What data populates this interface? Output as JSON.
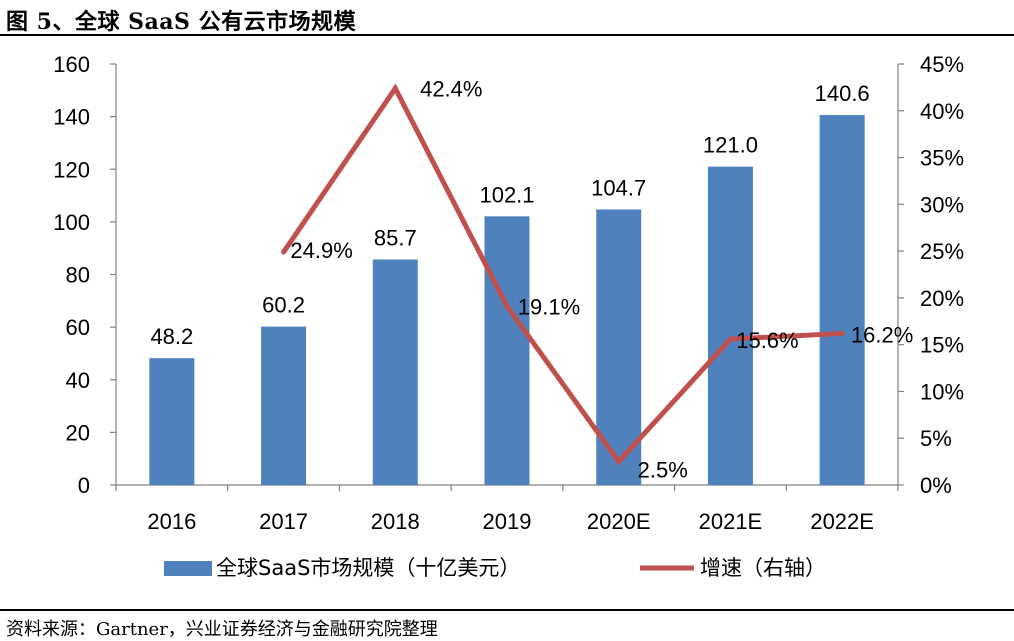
{
  "title": "图 5、全球 SaaS 公有云市场规模",
  "source": "资料来源：Gartner，兴业证券经济与金融研究院整理",
  "colors": {
    "bar": "#4F81BD",
    "line": "#C0504D",
    "axis": "#808080"
  },
  "chart_data": {
    "type": "bar",
    "categories": [
      "2016",
      "2017",
      "2018",
      "2019",
      "2020E",
      "2021E",
      "2022E"
    ],
    "series": [
      {
        "name": "全球SaaS市场规模（十亿美元）",
        "type": "bar",
        "axis": "left",
        "values": [
          48.2,
          60.2,
          85.7,
          102.1,
          104.7,
          121.0,
          140.6
        ],
        "labels": [
          "48.2",
          "60.2",
          "85.7",
          "102.1",
          "104.7",
          "121.0",
          "140.6"
        ]
      },
      {
        "name": "增速（右轴）",
        "type": "line",
        "axis": "right",
        "values": [
          null,
          24.9,
          42.4,
          19.1,
          2.5,
          15.6,
          16.2
        ],
        "labels": [
          "",
          "24.9%",
          "42.4%",
          "19.1%",
          "2.5%",
          "15.6%",
          "16.2%"
        ]
      }
    ],
    "y_left": {
      "ylim": [
        0,
        160
      ],
      "ticks": [
        "0",
        "20",
        "40",
        "60",
        "80",
        "100",
        "120",
        "140",
        "160"
      ]
    },
    "y_right": {
      "ylim": [
        0,
        45
      ],
      "ticks": [
        "0%",
        "5%",
        "10%",
        "15%",
        "20%",
        "25%",
        "30%",
        "35%",
        "40%",
        "45%"
      ]
    },
    "grid": false,
    "legend": "bottom"
  }
}
